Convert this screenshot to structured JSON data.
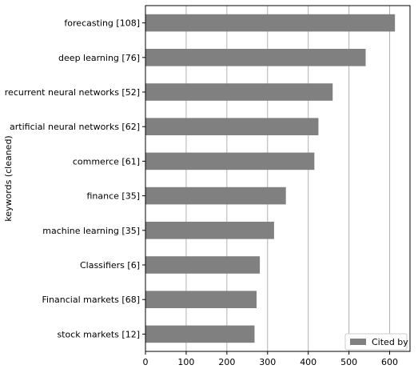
{
  "chart_data": {
    "type": "bar",
    "orientation": "horizontal",
    "categories": [
      "forecasting [108]",
      "deep learning [76]",
      "recurrent neural networks [52]",
      "artificial neural networks [62]",
      "commerce [61]",
      "finance [35]",
      "machine learning [35]",
      "Classifiers [6]",
      "Financial markets [68]",
      "stock markets [12]"
    ],
    "series": [
      {
        "name": "Cited by",
        "values": [
          613,
          541,
          460,
          425,
          415,
          345,
          316,
          281,
          273,
          268
        ],
        "color": "#808080"
      }
    ],
    "title": "",
    "xlabel": "",
    "ylabel": "keywords (cleaned)",
    "xlim": [
      0,
      650
    ],
    "xticks": [
      0,
      100,
      200,
      300,
      400,
      500,
      600
    ],
    "grid": "vertical",
    "legend": "bottom-right"
  }
}
